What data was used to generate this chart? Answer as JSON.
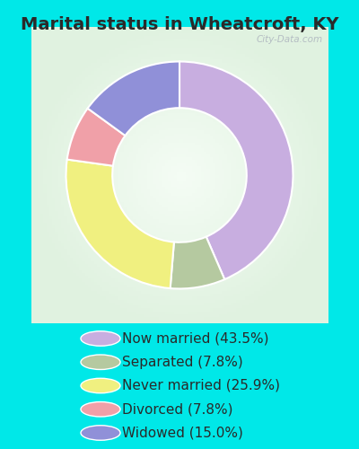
{
  "title": "Marital status in Wheatcroft, KY",
  "slices": [
    {
      "label": "Now married (43.5%)",
      "value": 43.5,
      "color": "#c8aee0"
    },
    {
      "label": "Separated (7.8%)",
      "value": 7.8,
      "color": "#b5c9a0"
    },
    {
      "label": "Never married (25.9%)",
      "value": 25.9,
      "color": "#f0f080"
    },
    {
      "label": "Divorced (7.8%)",
      "value": 7.8,
      "color": "#f0a0a8"
    },
    {
      "label": "Widowed (15.0%)",
      "value": 15.0,
      "color": "#9090d8"
    }
  ],
  "bg_outer": "#00e8e8",
  "bg_chart_color1": "#e8f5e8",
  "bg_chart_color2": "#d0e8d8",
  "watermark": "City-Data.com",
  "title_fontsize": 14,
  "legend_fontsize": 11,
  "start_angle": 90,
  "donut_width": 0.42
}
